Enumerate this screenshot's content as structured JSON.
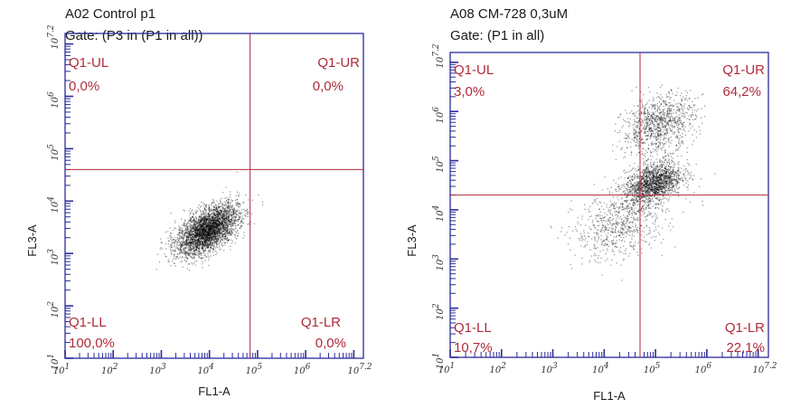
{
  "colors": {
    "frame": "#2b2b9a",
    "gate": "#b02a3a",
    "quadrant_text": "#b02a3a",
    "events": "#000000"
  },
  "chart_data": [
    {
      "type": "scatter",
      "title": "A02 Control p1",
      "subtitle": "Gate: (P3 in (P1 in all))",
      "xlabel": "FL1-A",
      "ylabel": "FL3-A",
      "x_scale": "log",
      "y_scale": "log",
      "xlim": [
        10,
        15848932
      ],
      "ylim": [
        10,
        15848932
      ],
      "x_tick_labels": [
        "10^1",
        "10^2",
        "10^3",
        "10^4",
        "10^5",
        "10^6",
        "10^7.2"
      ],
      "y_tick_labels": [
        "10^1",
        "10^2",
        "10^3",
        "10^4",
        "10^5",
        "10^6",
        "10^7.2"
      ],
      "gate": {
        "x": 70000,
        "y": 40000
      },
      "quadrants": [
        {
          "name": "Q1-UL",
          "percent": "0,0%",
          "position": "top-left"
        },
        {
          "name": "Q1-UR",
          "percent": "0,0%",
          "position": "top-right"
        },
        {
          "name": "Q1-LL",
          "percent": "100,0%",
          "position": "bottom-left"
        },
        {
          "name": "Q1-LR",
          "percent": "0,0%",
          "position": "bottom-right"
        }
      ],
      "populations": [
        {
          "center_log": [
            3.95,
            3.45
          ],
          "spread_log": [
            0.32,
            0.24
          ],
          "tilt": 0.55,
          "share": 1.0
        }
      ],
      "grid": false,
      "legend": "none"
    },
    {
      "type": "scatter",
      "title": "A08 CM-728 0,3uM",
      "subtitle": "Gate: (P1 in all)",
      "xlabel": "FL1-A",
      "ylabel": "FL3-A",
      "x_scale": "log",
      "y_scale": "log",
      "xlim": [
        10,
        15848932
      ],
      "ylim": [
        10,
        15848932
      ],
      "x_tick_labels": [
        "10^1",
        "10^2",
        "10^3",
        "10^4",
        "10^5",
        "10^6",
        "10^7.2"
      ],
      "y_tick_labels": [
        "10^1",
        "10^2",
        "10^3",
        "10^4",
        "10^5",
        "10^6",
        "10^7.2"
      ],
      "gate": {
        "x": 50000,
        "y": 20000
      },
      "quadrants": [
        {
          "name": "Q1-UL",
          "percent": "3,0%",
          "position": "top-left"
        },
        {
          "name": "Q1-UR",
          "percent": "64,2%",
          "position": "top-right"
        },
        {
          "name": "Q1-LL",
          "percent": "10,7%",
          "position": "bottom-left"
        },
        {
          "name": "Q1-LR",
          "percent": "22,1%",
          "position": "bottom-right"
        }
      ],
      "populations": [
        {
          "center_log": [
            4.95,
            4.55
          ],
          "spread_log": [
            0.28,
            0.22
          ],
          "tilt": 0.4,
          "share": 0.5
        },
        {
          "center_log": [
            5.05,
            5.75
          ],
          "spread_log": [
            0.35,
            0.3
          ],
          "tilt": 0.3,
          "share": 0.3
        },
        {
          "center_log": [
            4.3,
            3.7
          ],
          "spread_log": [
            0.45,
            0.35
          ],
          "tilt": 0.3,
          "share": 0.2
        }
      ],
      "grid": false,
      "legend": "none"
    }
  ]
}
